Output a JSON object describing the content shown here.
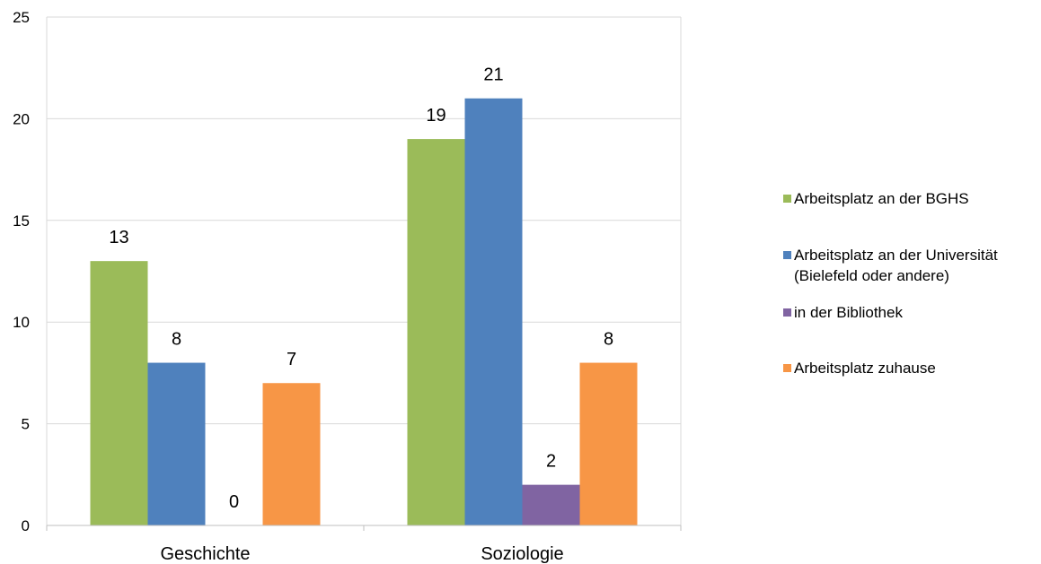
{
  "chart_data": {
    "type": "bar",
    "title": "",
    "xlabel": "",
    "ylabel": "",
    "ylim": [
      0,
      25
    ],
    "yticks": [
      "0",
      "5",
      "10",
      "15",
      "20",
      "25"
    ],
    "categories": [
      "Geschichte",
      "Soziologie"
    ],
    "grid": true,
    "legend_position": "right",
    "series": [
      {
        "name": "Arbeitsplatz an der BGHS",
        "name_lines": [
          "Arbeitsplatz an der BGHS"
        ],
        "color": "#9bbb59",
        "values": [
          13,
          19
        ]
      },
      {
        "name": "Arbeitsplatz an der Universität (Bielefeld oder andere)",
        "name_lines": [
          "Arbeitsplatz an der Universität",
          "(Bielefeld oder andere)"
        ],
        "color": "#4f81bd",
        "values": [
          8,
          21
        ]
      },
      {
        "name": "in der Bibliothek",
        "name_lines": [
          "in der Bibliothek"
        ],
        "color": "#8064a2",
        "values": [
          0,
          2
        ]
      },
      {
        "name": "Arbeitsplatz zuhause",
        "name_lines": [
          "Arbeitsplatz zuhause"
        ],
        "color": "#f79646",
        "values": [
          7,
          8
        ]
      }
    ]
  }
}
